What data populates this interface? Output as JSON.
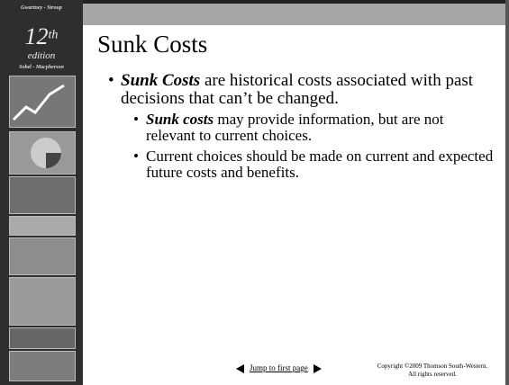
{
  "sidebar": {
    "authors_top": "Gwartney - Stroup",
    "edition_number": "12",
    "edition_suffix": "th",
    "edition_word": "edition",
    "authors_bottom": "Sobel - Macpherson"
  },
  "slide": {
    "title": "Sunk Costs",
    "bullets": [
      {
        "emphasis": "Sunk Costs",
        "text": " are historical costs associated with past decisions that can’t be changed.",
        "sub_bullets": [
          {
            "emphasis": "Sunk costs",
            "text": " may provide information, but are not relevant to current choices."
          },
          {
            "text": "Current choices should be made on current and expected future costs and benefits."
          }
        ]
      }
    ]
  },
  "footer": {
    "nav_link": "Jump to first page",
    "copyright_line1": "Copyright ©2009  Thomson South-Western.",
    "copyright_line2": "All rights reserved."
  }
}
